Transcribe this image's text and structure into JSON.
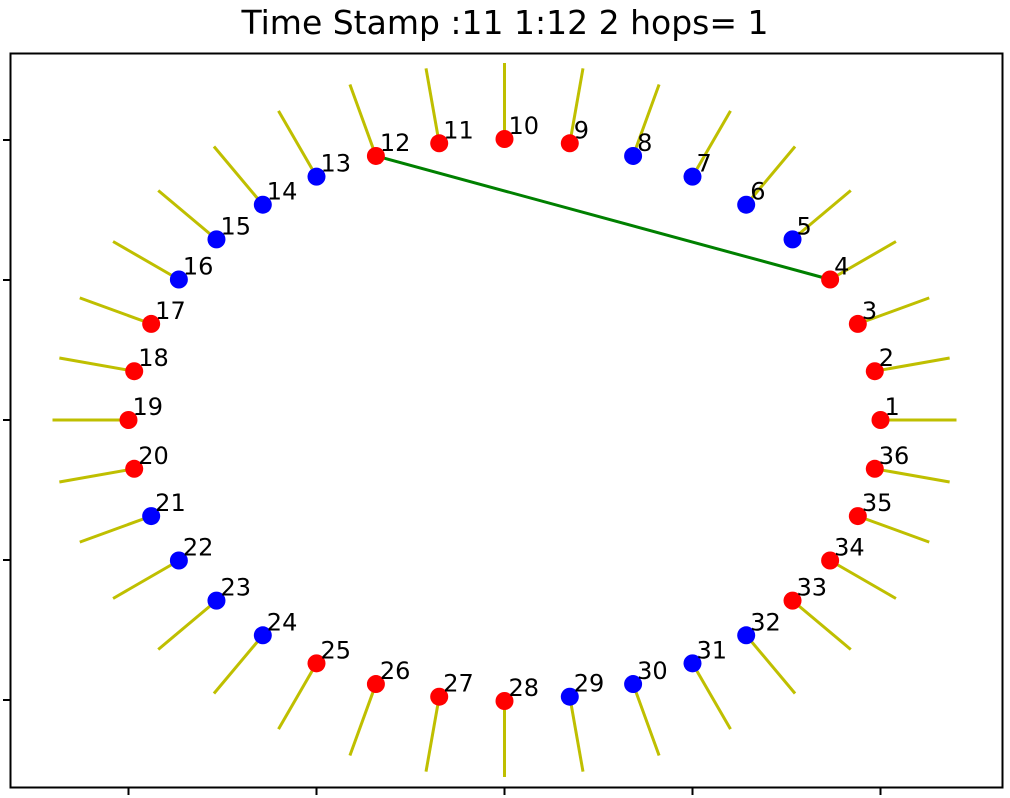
{
  "chart_data": {
    "type": "scatter",
    "title": "Time Stamp :11 1:12 2 hops= 1",
    "xlabel": "",
    "ylabel": "",
    "grid": false,
    "colors": {
      "red": "#ff0000",
      "blue": "#0000ff",
      "tick_line": "#bfbf00",
      "route": "#008000",
      "axes": "#000000"
    },
    "nodes": [
      {
        "id": "1",
        "angle_deg": 0,
        "color": "red"
      },
      {
        "id": "2",
        "angle_deg": 10,
        "color": "red"
      },
      {
        "id": "3",
        "angle_deg": 20,
        "color": "red"
      },
      {
        "id": "4",
        "angle_deg": 30,
        "color": "red"
      },
      {
        "id": "5",
        "angle_deg": 40,
        "color": "blue"
      },
      {
        "id": "6",
        "angle_deg": 50,
        "color": "blue"
      },
      {
        "id": "7",
        "angle_deg": 60,
        "color": "blue"
      },
      {
        "id": "8",
        "angle_deg": 70,
        "color": "blue"
      },
      {
        "id": "9",
        "angle_deg": 80,
        "color": "red"
      },
      {
        "id": "10",
        "angle_deg": 90,
        "color": "red"
      },
      {
        "id": "11",
        "angle_deg": 100,
        "color": "red"
      },
      {
        "id": "12",
        "angle_deg": 110,
        "color": "red"
      },
      {
        "id": "13",
        "angle_deg": 120,
        "color": "blue"
      },
      {
        "id": "14",
        "angle_deg": 130,
        "color": "blue"
      },
      {
        "id": "15",
        "angle_deg": 140,
        "color": "blue"
      },
      {
        "id": "16",
        "angle_deg": 150,
        "color": "blue"
      },
      {
        "id": "17",
        "angle_deg": 160,
        "color": "red"
      },
      {
        "id": "18",
        "angle_deg": 170,
        "color": "red"
      },
      {
        "id": "19",
        "angle_deg": 180,
        "color": "red"
      },
      {
        "id": "20",
        "angle_deg": 190,
        "color": "red"
      },
      {
        "id": "21",
        "angle_deg": 200,
        "color": "blue"
      },
      {
        "id": "22",
        "angle_deg": 210,
        "color": "blue"
      },
      {
        "id": "23",
        "angle_deg": 220,
        "color": "blue"
      },
      {
        "id": "24",
        "angle_deg": 230,
        "color": "blue"
      },
      {
        "id": "25",
        "angle_deg": 240,
        "color": "red"
      },
      {
        "id": "26",
        "angle_deg": 250,
        "color": "red"
      },
      {
        "id": "27",
        "angle_deg": 260,
        "color": "red"
      },
      {
        "id": "28",
        "angle_deg": 270,
        "color": "red"
      },
      {
        "id": "29",
        "angle_deg": 280,
        "color": "blue"
      },
      {
        "id": "30",
        "angle_deg": 290,
        "color": "blue"
      },
      {
        "id": "31",
        "angle_deg": 300,
        "color": "blue"
      },
      {
        "id": "32",
        "angle_deg": 310,
        "color": "blue"
      },
      {
        "id": "33",
        "angle_deg": 320,
        "color": "red"
      },
      {
        "id": "34",
        "angle_deg": 330,
        "color": "red"
      },
      {
        "id": "35",
        "angle_deg": 340,
        "color": "red"
      },
      {
        "id": "36",
        "angle_deg": 350,
        "color": "red"
      }
    ],
    "links": [
      {
        "from": "4",
        "to": "12"
      }
    ]
  }
}
